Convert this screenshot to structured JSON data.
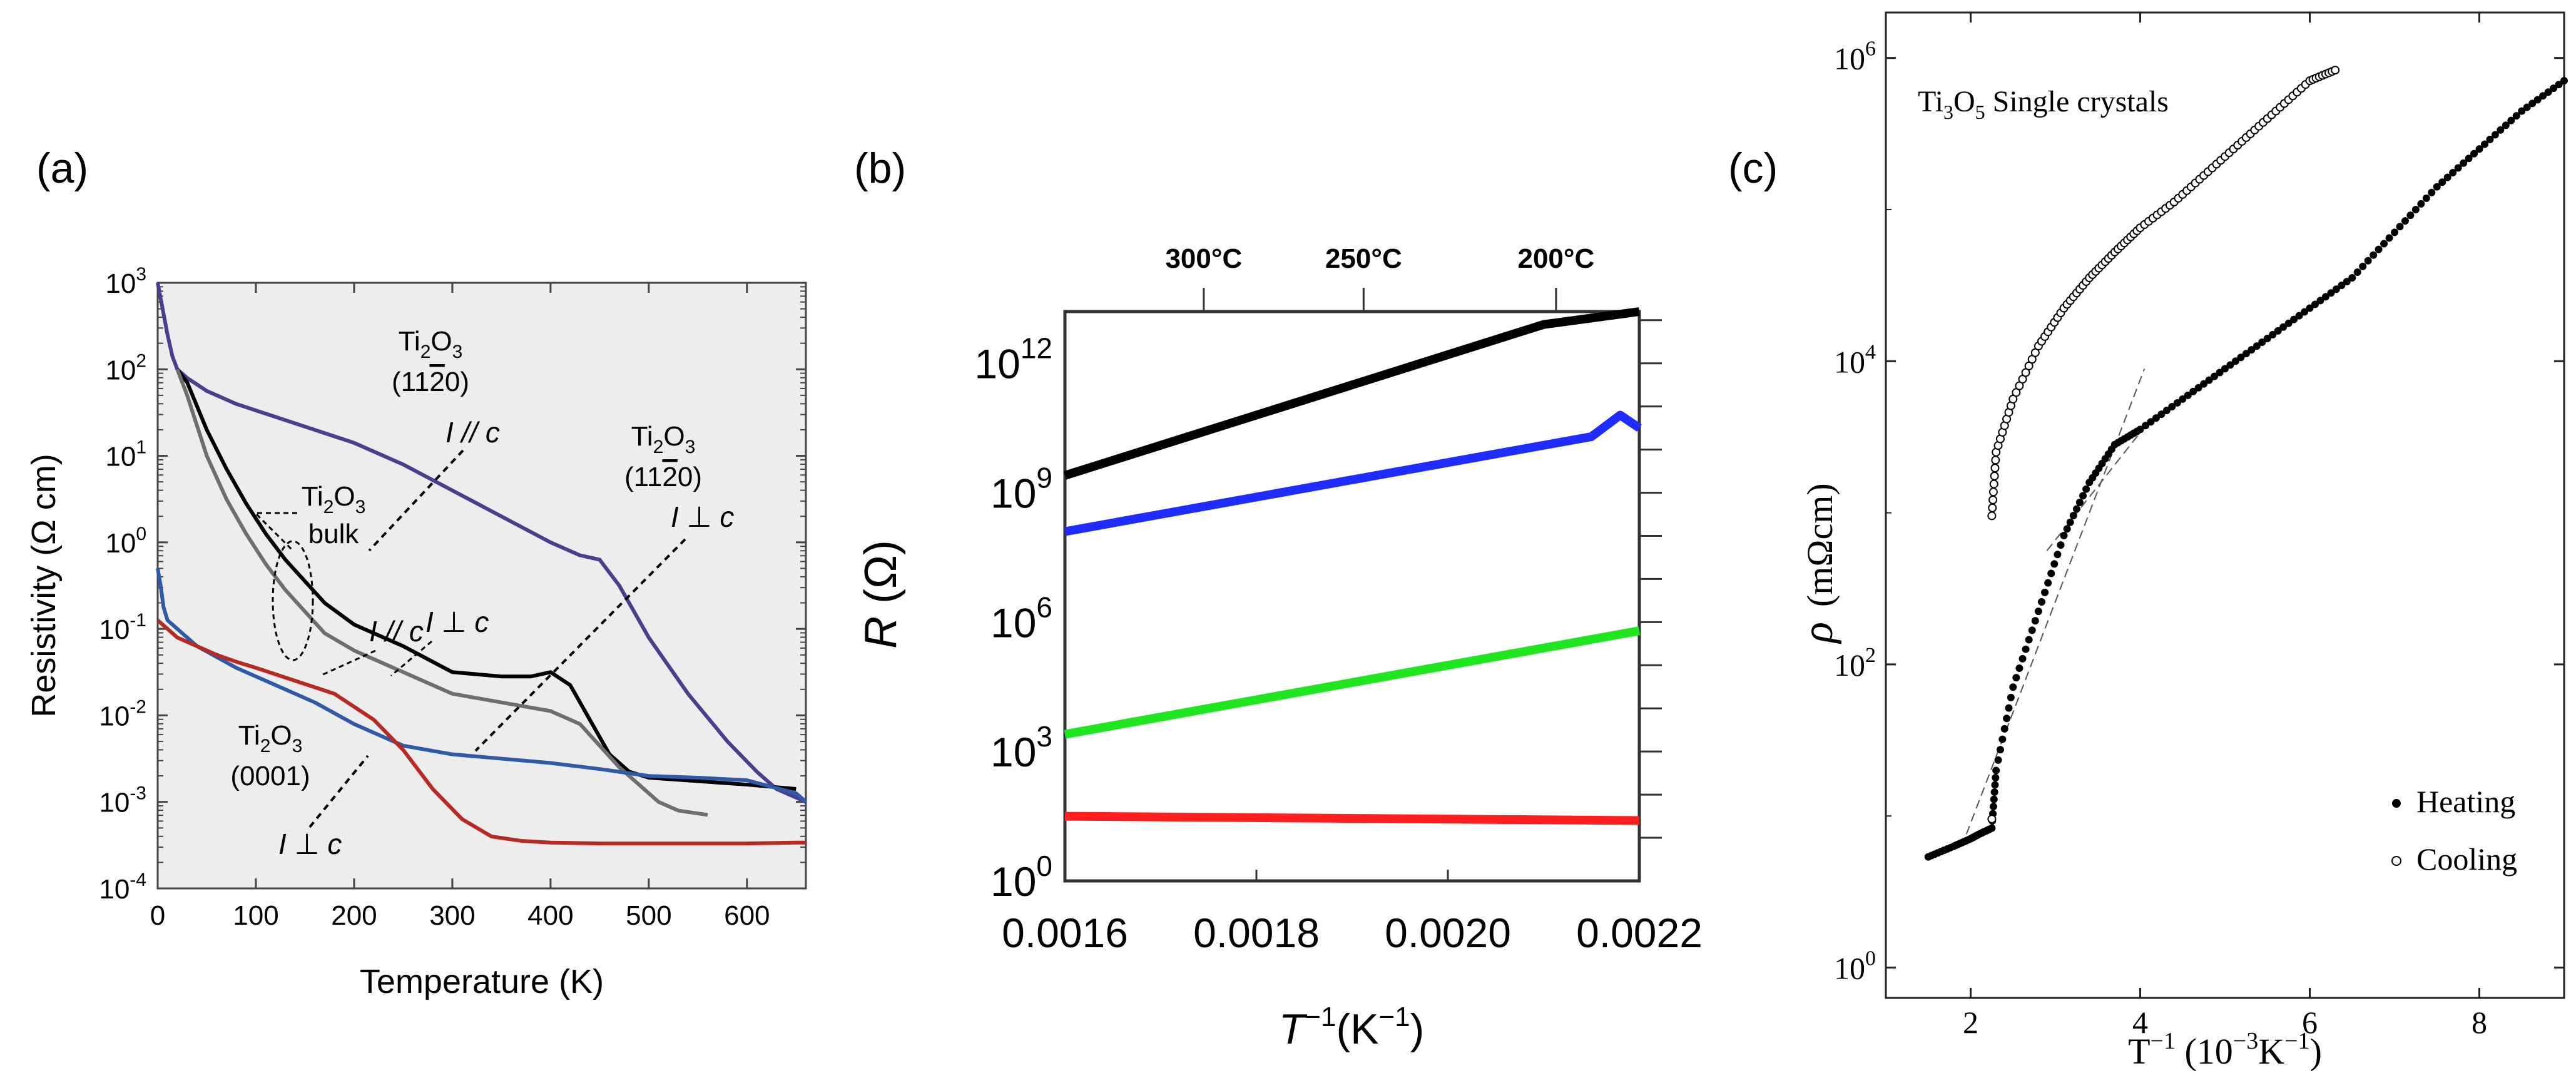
{
  "colors": {
    "purple": "#4a3f8f",
    "black": "#000000",
    "gray": "#6e6e6e",
    "blue": "#2f5aa8",
    "red": "#b62a22",
    "b_blue": "#1f2cff",
    "b_green": "#1fe61f",
    "b_red": "#ff1f1f",
    "frame": "#333333"
  },
  "chart_data": [
    {
      "panel_label": "(a)",
      "type": "line",
      "xlabel": "Temperature (K)",
      "ylabel": "Resistivity (Ω cm)",
      "xlim": [
        0,
        660
      ],
      "ylim_log10": [
        -4,
        3
      ],
      "xticks": [
        "0",
        "100",
        "200",
        "300",
        "400",
        "500",
        "600"
      ],
      "xtick_values": [
        0,
        100,
        200,
        300,
        400,
        500,
        600
      ],
      "yticks": [
        {
          "base": "10",
          "exp": "-4",
          "v": -4
        },
        {
          "base": "10",
          "exp": "-3",
          "v": -3
        },
        {
          "base": "10",
          "exp": "-2",
          "v": -2
        },
        {
          "base": "10",
          "exp": "-1",
          "v": -1
        },
        {
          "base": "10",
          "exp": "0",
          "v": 0
        },
        {
          "base": "10",
          "exp": "1",
          "v": 1
        },
        {
          "base": "10",
          "exp": "2",
          "v": 2
        },
        {
          "base": "10",
          "exp": "3",
          "v": 3
        }
      ],
      "annotations": {
        "purple_formula": [
          "Ti",
          "2",
          "O",
          "3"
        ],
        "purple_plane": "(11",
        "purple_plane_bar": "2",
        "purple_plane_end": "0)",
        "purple_dir": "I // c",
        "blue_formula": [
          "Ti",
          "2",
          "O",
          "3"
        ],
        "blue_plane": "(11",
        "blue_plane_bar": "2",
        "blue_plane_end": "0)",
        "blue_dir": "I ⊥ c",
        "bulk_formula": [
          "Ti",
          "2",
          "O",
          "3"
        ],
        "bulk_word": "bulk",
        "black_dir": "I // c",
        "gray_dir": "I ⊥ c",
        "red_formula": [
          "Ti",
          "2",
          "O",
          "3"
        ],
        "red_plane": "(0001)",
        "red_dir": "I ⊥ c"
      },
      "series": [
        {
          "name": "Ti2O3 (11-20) I // c",
          "color_key": "purple",
          "x": [
            0,
            5,
            10,
            15,
            20,
            30,
            50,
            80,
            120,
            160,
            200,
            250,
            300,
            350,
            400,
            430,
            450,
            470,
            500,
            540,
            580,
            610,
            630,
            650,
            660
          ],
          "log10_y": [
            3.0,
            2.7,
            2.4,
            2.15,
            2.0,
            1.9,
            1.75,
            1.6,
            1.45,
            1.3,
            1.15,
            0.9,
            0.6,
            0.3,
            0.0,
            -0.15,
            -0.2,
            -0.5,
            -1.1,
            -1.75,
            -2.3,
            -2.65,
            -2.85,
            -2.95,
            -3.0
          ]
        },
        {
          "name": "Ti2O3 bulk I // c",
          "color_key": "black",
          "x": [
            20,
            30,
            50,
            70,
            90,
            110,
            130,
            150,
            170,
            200,
            250,
            300,
            350,
            380,
            400,
            420,
            440,
            460,
            480,
            500,
            550,
            600,
            650
          ],
          "log10_y": [
            2.0,
            1.85,
            1.3,
            0.85,
            0.45,
            0.1,
            -0.2,
            -0.45,
            -0.7,
            -0.95,
            -1.2,
            -1.5,
            -1.55,
            -1.55,
            -1.5,
            -1.65,
            -2.05,
            -2.45,
            -2.65,
            -2.72,
            -2.76,
            -2.8,
            -2.85
          ]
        },
        {
          "name": "Ti2O3 bulk I ⊥ c",
          "color_key": "gray",
          "x": [
            20,
            30,
            50,
            70,
            90,
            110,
            130,
            150,
            170,
            200,
            250,
            300,
            350,
            400,
            430,
            450,
            470,
            490,
            510,
            530,
            560
          ],
          "log10_y": [
            2.0,
            1.7,
            1.0,
            0.5,
            0.1,
            -0.25,
            -0.55,
            -0.8,
            -1.05,
            -1.25,
            -1.5,
            -1.75,
            -1.85,
            -1.95,
            -2.1,
            -2.35,
            -2.6,
            -2.8,
            -3.0,
            -3.1,
            -3.15
          ]
        },
        {
          "name": "Ti2O3 (11-20) I ⊥ c",
          "color_key": "blue",
          "x": [
            0,
            3,
            6,
            10,
            20,
            40,
            80,
            120,
            160,
            200,
            250,
            300,
            350,
            400,
            450,
            500,
            550,
            600,
            650,
            660
          ],
          "log10_y": [
            -0.3,
            -0.5,
            -0.75,
            -0.9,
            -1.0,
            -1.2,
            -1.45,
            -1.65,
            -1.85,
            -2.1,
            -2.35,
            -2.45,
            -2.5,
            -2.55,
            -2.62,
            -2.7,
            -2.72,
            -2.75,
            -2.9,
            -3.0
          ]
        },
        {
          "name": "Ti2O3 (0001) I ⊥ c",
          "color_key": "red",
          "x": [
            0,
            5,
            10,
            20,
            40,
            60,
            80,
            100,
            140,
            180,
            220,
            250,
            280,
            310,
            340,
            370,
            400,
            450,
            500,
            550,
            600,
            650,
            660
          ],
          "log10_y": [
            -0.9,
            -0.95,
            -1.0,
            -1.1,
            -1.2,
            -1.3,
            -1.38,
            -1.45,
            -1.6,
            -1.75,
            -2.05,
            -2.4,
            -2.85,
            -3.2,
            -3.4,
            -3.45,
            -3.47,
            -3.48,
            -3.48,
            -3.48,
            -3.48,
            -3.47,
            -3.47
          ]
        }
      ]
    },
    {
      "panel_label": "(b)",
      "type": "line",
      "xlabel_main": "T",
      "xlabel_sup": "−1",
      "xlabel_unit": "(K",
      "xlabel_unit_sup": "−1",
      "xlabel_close": ")",
      "ylabel": "R (Ω)",
      "ylabel_main": "R",
      "ylabel_rest": " (Ω)",
      "xlim": [
        0.0016,
        0.0022
      ],
      "ylim_log10": [
        0,
        13.2
      ],
      "xticks": [
        "0.0016",
        "0.0018",
        "0.0020",
        "0.0022"
      ],
      "xtick_values": [
        0.0016,
        0.0018,
        0.002,
        0.0022
      ],
      "yticks": [
        {
          "base": "10",
          "exp": "0",
          "v": 0
        },
        {
          "base": "10",
          "exp": "3",
          "v": 3
        },
        {
          "base": "10",
          "exp": "6",
          "v": 6
        },
        {
          "base": "10",
          "exp": "9",
          "v": 9
        },
        {
          "base": "10",
          "exp": "12",
          "v": 12
        }
      ],
      "top_axis": [
        {
          "label": "300°C",
          "x": 0.001745
        },
        {
          "label": "250°C",
          "x": 0.001912
        },
        {
          "label": "200°C",
          "x": 0.002113
        }
      ],
      "series": [
        {
          "name": "black",
          "color_key": "black",
          "x": [
            0.0016,
            0.0021,
            0.0022
          ],
          "log10_y": [
            9.4,
            12.9,
            13.2
          ]
        },
        {
          "name": "blue",
          "color_key": "b_blue",
          "x": [
            0.0016,
            0.00215,
            0.00218,
            0.0022
          ],
          "log10_y": [
            8.1,
            10.3,
            10.8,
            10.5
          ]
        },
        {
          "name": "green",
          "color_key": "b_green",
          "x": [
            0.0016,
            0.0022
          ],
          "log10_y": [
            3.4,
            5.8
          ]
        },
        {
          "name": "red",
          "color_key": "b_red",
          "x": [
            0.0016,
            0.0022
          ],
          "log10_y": [
            1.5,
            1.4
          ]
        }
      ]
    },
    {
      "panel_label": "(c)",
      "type": "scatter",
      "title": "Ti₃O₅ Single crystals",
      "title_parts": [
        "Ti",
        "3",
        "O",
        "5",
        " Single crystals"
      ],
      "xlabel_main": "T",
      "xlabel_sup": "−1",
      "xlabel_mid": " (10",
      "xlabel_sup2": "−3",
      "xlabel_end": "K",
      "xlabel_sup3": "−1",
      "xlabel_close": ")",
      "ylabel": "ρ (mΩ cm)",
      "ylabel_rho": "ρ",
      "ylabel_rest": "(mΩcm)",
      "xlim": [
        1,
        9
      ],
      "ylim_log10": [
        -0.2,
        6.3
      ],
      "xticks": [
        "2",
        "4",
        "6",
        "8"
      ],
      "xtick_values": [
        2,
        4,
        6,
        8
      ],
      "yticks": [
        {
          "base": "10",
          "exp": "0",
          "v": 0
        },
        {
          "base": "10",
          "exp": "2",
          "v": 2
        },
        {
          "base": "10",
          "exp": "4",
          "v": 4
        },
        {
          "base": "10",
          "exp": "6",
          "v": 6
        }
      ],
      "legend": [
        {
          "marker": "filled",
          "label": "Heating"
        },
        {
          "marker": "open",
          "label": "Cooling"
        }
      ],
      "series": [
        {
          "name": "Heating",
          "marker": "filled",
          "x": [
            1.5,
            1.8,
            2.0,
            2.1,
            2.25,
            2.3,
            2.5,
            2.8,
            3.1,
            3.4,
            3.7,
            4.0,
            4.5,
            5.0,
            5.5,
            6.0,
            6.5,
            7.0,
            7.5,
            8.0,
            8.5,
            9.0
          ],
          "log10_y": [
            0.73,
            0.8,
            0.85,
            0.88,
            0.92,
            1.3,
            1.85,
            2.35,
            2.85,
            3.2,
            3.45,
            3.55,
            3.75,
            3.95,
            4.15,
            4.35,
            4.55,
            4.85,
            5.15,
            5.4,
            5.65,
            5.85
          ]
        },
        {
          "name": "Cooling",
          "marker": "open",
          "x": [
            2.25,
            2.3,
            2.5,
            2.8,
            3.1,
            3.4,
            3.7,
            4.0,
            4.4,
            4.8,
            5.2,
            5.6,
            6.0,
            6.3
          ],
          "log10_y": [
            2.98,
            3.4,
            3.75,
            4.1,
            4.35,
            4.55,
            4.72,
            4.88,
            5.05,
            5.25,
            5.45,
            5.65,
            5.85,
            5.92
          ]
        },
        {
          "name": "Heating (tail)",
          "marker": "open",
          "x": [
            2.25
          ],
          "log10_y": [
            0.98
          ]
        }
      ],
      "dashed_fits": [
        {
          "x": [
            1.95,
            4.05
          ],
          "log10_y": [
            0.88,
            3.95
          ]
        },
        {
          "x": [
            2.9,
            4.1
          ],
          "log10_y": [
            2.75,
            3.6
          ]
        }
      ]
    }
  ]
}
